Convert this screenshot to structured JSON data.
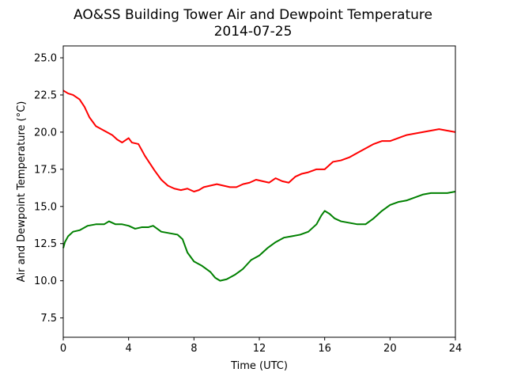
{
  "chart_data": {
    "type": "line",
    "title": "AO&SS Building Tower Air and Dewpoint Temperature",
    "subtitle": "2014-07-25",
    "xlabel": "Time (UTC)",
    "ylabel": "Air and Dewpoint Temperature (°C)",
    "xlim": [
      0,
      24
    ],
    "ylim": [
      6.2,
      25.8
    ],
    "xticks": [
      0,
      4,
      8,
      12,
      16,
      20,
      24
    ],
    "yticks": [
      7.5,
      10.0,
      12.5,
      15.0,
      17.5,
      20.0,
      22.5,
      25.0
    ],
    "ytick_labels": [
      "7.5",
      "10.0",
      "12.5",
      "15.0",
      "17.5",
      "20.0",
      "22.5",
      "25.0"
    ],
    "grid": false,
    "series": [
      {
        "color": "#ff0000",
        "x": [
          0,
          0.3,
          0.6,
          1.0,
          1.3,
          1.6,
          2.0,
          2.5,
          3.0,
          3.3,
          3.6,
          4.0,
          4.2,
          4.6,
          5.0,
          5.3,
          5.6,
          6.0,
          6.4,
          6.8,
          7.2,
          7.6,
          8.0,
          8.3,
          8.6,
          9.0,
          9.4,
          9.8,
          10.2,
          10.6,
          11.0,
          11.4,
          11.8,
          12.2,
          12.6,
          13.0,
          13.4,
          13.8,
          14.2,
          14.6,
          15.0,
          15.5,
          16.0,
          16.5,
          17.0,
          17.5,
          18.0,
          18.5,
          19.0,
          19.5,
          20.0,
          20.5,
          21.0,
          21.5,
          22.0,
          22.5,
          23.0,
          23.5,
          24.0
        ],
        "values": [
          22.8,
          22.6,
          22.5,
          22.2,
          21.7,
          21.0,
          20.4,
          20.1,
          19.8,
          19.5,
          19.3,
          19.6,
          19.3,
          19.2,
          18.4,
          17.9,
          17.4,
          16.8,
          16.4,
          16.2,
          16.1,
          16.2,
          16.0,
          16.1,
          16.3,
          16.4,
          16.5,
          16.4,
          16.3,
          16.3,
          16.5,
          16.6,
          16.8,
          16.7,
          16.6,
          16.9,
          16.7,
          16.6,
          17.0,
          17.2,
          17.3,
          17.5,
          17.5,
          18.0,
          18.1,
          18.3,
          18.6,
          18.9,
          19.2,
          19.4,
          19.4,
          19.6,
          19.8,
          19.9,
          20.0,
          20.1,
          20.2,
          20.1,
          20.0
        ]
      },
      {
        "color": "#008000",
        "x": [
          0,
          0.1,
          0.3,
          0.6,
          1.0,
          1.5,
          2.0,
          2.5,
          2.8,
          3.2,
          3.6,
          4.0,
          4.4,
          4.8,
          5.2,
          5.5,
          6.0,
          6.5,
          7.0,
          7.3,
          7.6,
          8.0,
          8.5,
          9.0,
          9.3,
          9.6,
          10.0,
          10.5,
          11.0,
          11.5,
          12.0,
          12.5,
          13.0,
          13.5,
          14.0,
          14.5,
          15.0,
          15.5,
          15.8,
          16.0,
          16.3,
          16.6,
          17.0,
          17.5,
          18.0,
          18.5,
          19.0,
          19.5,
          20.0,
          20.5,
          21.0,
          21.5,
          22.0,
          22.5,
          23.0,
          23.5,
          24.0
        ],
        "values": [
          12.2,
          12.6,
          13.0,
          13.3,
          13.4,
          13.7,
          13.8,
          13.8,
          14.0,
          13.8,
          13.8,
          13.7,
          13.5,
          13.6,
          13.6,
          13.7,
          13.3,
          13.2,
          13.1,
          12.8,
          11.9,
          11.3,
          11.0,
          10.6,
          10.2,
          10.0,
          10.1,
          10.4,
          10.8,
          11.4,
          11.7,
          12.2,
          12.6,
          12.9,
          13.0,
          13.1,
          13.3,
          13.8,
          14.4,
          14.7,
          14.5,
          14.2,
          14.0,
          13.9,
          13.8,
          13.8,
          14.2,
          14.7,
          15.1,
          15.3,
          15.4,
          15.6,
          15.8,
          15.9,
          15.9,
          15.9,
          16.0
        ]
      }
    ]
  }
}
